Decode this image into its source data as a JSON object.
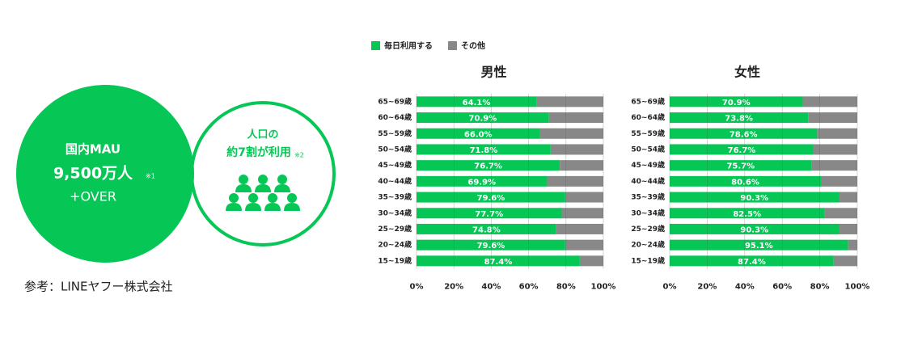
{
  "info": {
    "mau_title": "国内MAU",
    "mau_value": "9,500万人",
    "mau_note": "※1",
    "mau_over": "+OVER",
    "pop_line1": "人口の",
    "pop_line2": "約7割が利用",
    "pop_note": "※2",
    "source": "参考：LINEヤフー株式会社"
  },
  "chart_data": [
    {
      "type": "hbar",
      "title": "男性",
      "categories": [
        "65~69歳",
        "60~64歳",
        "55~59歳",
        "50~54歳",
        "45~49歳",
        "40~44歳",
        "35~39歳",
        "30~34歳",
        "25~29歳",
        "20~24歳",
        "15~19歳"
      ],
      "series": [
        {
          "name": "毎日利用する",
          "color": "#06c755",
          "values": [
            64.1,
            70.9,
            66.0,
            71.8,
            76.7,
            69.9,
            79.6,
            77.7,
            74.8,
            79.6,
            87.4
          ],
          "value_labels": [
            "64.1%",
            "70.9%",
            "66.0%",
            "71.8%",
            "76.7%",
            "69.9%",
            "79.6%",
            "77.7%",
            "74.8%",
            "79.6%",
            "87.4%"
          ]
        },
        {
          "name": "その他",
          "color": "#888888",
          "values": [
            35.9,
            29.1,
            34.0,
            28.2,
            23.3,
            30.1,
            20.4,
            22.3,
            25.2,
            20.4,
            12.6
          ]
        }
      ],
      "xlim": [
        0,
        100
      ],
      "xticks": [
        {
          "value": 0,
          "label": "0%"
        },
        {
          "value": 20,
          "label": "20%"
        },
        {
          "value": 40,
          "label": "40%"
        },
        {
          "value": 60,
          "label": "60%"
        },
        {
          "value": 80,
          "label": "80%"
        },
        {
          "value": 100,
          "label": "100%"
        }
      ],
      "grid": true
    },
    {
      "type": "hbar",
      "title": "女性",
      "categories": [
        "65~69歳",
        "60~64歳",
        "55~59歳",
        "50~54歳",
        "45~49歳",
        "40~44歳",
        "35~39歳",
        "30~34歳",
        "25~29歳",
        "20~24歳",
        "15~19歳"
      ],
      "series": [
        {
          "name": "毎日利用する",
          "color": "#06c755",
          "values": [
            70.9,
            73.8,
            78.6,
            76.7,
            75.7,
            80.6,
            90.3,
            82.5,
            90.3,
            95.1,
            87.4
          ],
          "value_labels": [
            "70.9%",
            "73.8%",
            "78.6%",
            "76.7%",
            "75.7%",
            "80.6%",
            "90.3%",
            "82.5%",
            "90.3%",
            "95.1%",
            "87.4%"
          ]
        },
        {
          "name": "その他",
          "color": "#888888",
          "values": [
            29.1,
            26.2,
            21.4,
            23.3,
            24.3,
            19.4,
            9.7,
            17.5,
            9.7,
            4.9,
            12.6
          ]
        }
      ],
      "xlim": [
        0,
        100
      ],
      "xticks": [
        {
          "value": 0,
          "label": "0%"
        },
        {
          "value": 20,
          "label": "20%"
        },
        {
          "value": 40,
          "label": "40%"
        },
        {
          "value": 60,
          "label": "60%"
        },
        {
          "value": 80,
          "label": "80%"
        },
        {
          "value": 100,
          "label": "100%"
        }
      ],
      "grid": true
    }
  ]
}
